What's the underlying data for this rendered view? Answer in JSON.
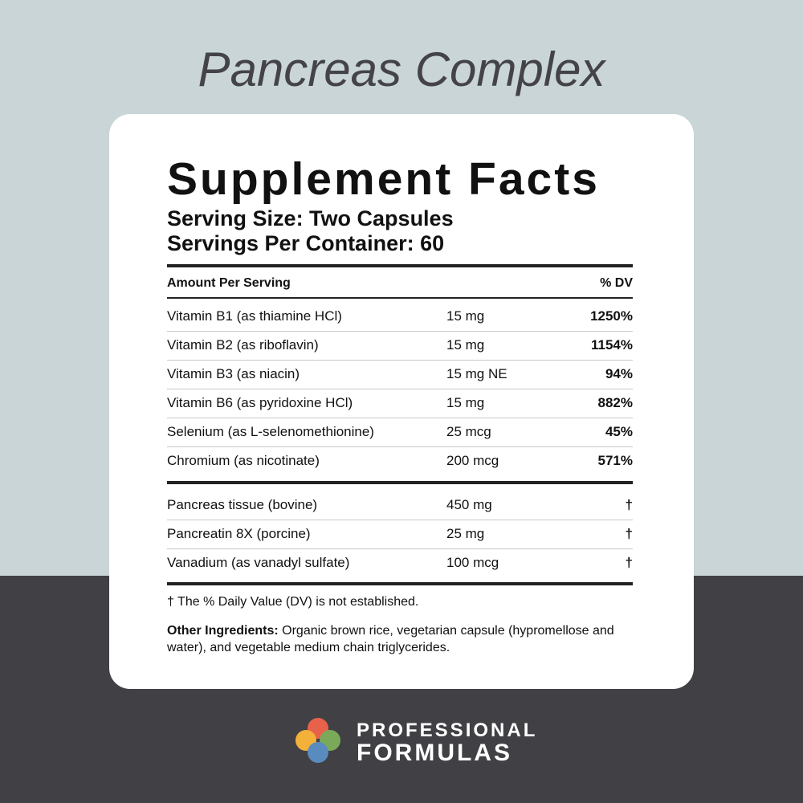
{
  "header": {
    "title": "Pancreas Complex"
  },
  "facts": {
    "title": "Supplement Facts",
    "serving_size": "Serving Size: Two Capsules",
    "servings_per_container": "Servings Per Container: 60",
    "column_headers": [
      "Amount Per Serving",
      "% DV"
    ],
    "rows": [
      [
        "Vitamin B1 (as thiamine HCl)",
        "15 mg",
        "1250%"
      ],
      [
        "Vitamin B2 (as riboflavin)",
        "15 mg",
        "1154%"
      ],
      [
        "Vitamin B3 (as niacin)",
        "15 mg NE",
        "94%"
      ],
      [
        "Vitamin B6 (as pyridoxine HCl)",
        "15 mg",
        "882%"
      ],
      [
        "Selenium (as L-selenomethionine)",
        "25 mcg",
        "45%"
      ],
      [
        "Chromium (as nicotinate)",
        "200 mcg",
        "571%"
      ]
    ],
    "other_rows": [
      [
        "Pancreas tissue (bovine)",
        "450 mg",
        "†"
      ],
      [
        "Pancreatin 8X (porcine)",
        "25 mg",
        "†"
      ],
      [
        "Vanadium (as vanadyl sulfate)",
        "100 mcg",
        "†"
      ]
    ],
    "footnote": "† The % Daily Value (DV) is not established.",
    "other_label": "Other Ingredients:",
    "other_text": "Organic brown rice, vegetarian capsule (hypromellose and water), and vegetable medium chain triglycerides."
  },
  "brand": {
    "line1": "PROFESSIONAL",
    "line2": "FORMULAS"
  }
}
